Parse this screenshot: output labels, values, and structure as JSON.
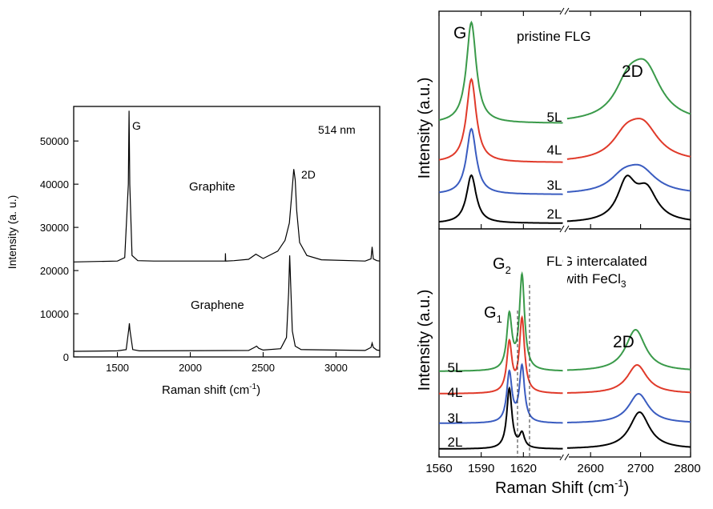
{
  "chart_data": [
    {
      "type": "line",
      "xlabel": "Raman shift (cm",
      "xlabel_sup": "-1",
      "xlabel_close": ")",
      "ylabel": "Intensity (a. u.)",
      "xlim": [
        1200,
        3300
      ],
      "ylim": [
        0,
        58000
      ],
      "xticks": [
        1500,
        2000,
        2500,
        3000
      ],
      "yticks": [
        0,
        10000,
        20000,
        30000,
        40000,
        50000
      ],
      "annotations": {
        "laser": "514 nm",
        "peak_g": "G",
        "peak_2d": "2D"
      },
      "grid": false,
      "series": [
        {
          "name": "Graphite",
          "baseline": 22000,
          "x": [
            1200,
            1500,
            1550,
            1575,
            1580,
            1585,
            1600,
            1640,
            1750,
            2200,
            2240,
            2241,
            2243,
            2300,
            2400,
            2450,
            2500,
            2600,
            2650,
            2680,
            2695,
            2710,
            2720,
            2730,
            2750,
            2800,
            2900,
            3200,
            3240,
            3248,
            3256,
            3280,
            3300
          ],
          "y": [
            22000,
            22200,
            23000,
            40000,
            57000,
            40000,
            23500,
            22300,
            22200,
            22200,
            22200,
            24000,
            22200,
            22300,
            22600,
            23800,
            22800,
            24500,
            27000,
            31000,
            37000,
            43500,
            41000,
            34000,
            26500,
            23500,
            22500,
            22200,
            22700,
            25500,
            22700,
            22300,
            22200
          ]
        },
        {
          "name": "Graphene",
          "baseline": 1200,
          "x": [
            1200,
            1500,
            1560,
            1578,
            1582,
            1586,
            1605,
            1650,
            2400,
            2440,
            2455,
            2470,
            2500,
            2620,
            2660,
            2675,
            2682,
            2690,
            2700,
            2720,
            2760,
            3200,
            3240,
            3248,
            3256,
            3280,
            3300
          ],
          "y": [
            1300,
            1400,
            1700,
            6500,
            7800,
            6200,
            1700,
            1400,
            1500,
            2200,
            2500,
            2000,
            1600,
            1900,
            4500,
            15000,
            23500,
            16000,
            6000,
            2500,
            1700,
            1500,
            2200,
            3200,
            2200,
            1600,
            1500
          ]
        }
      ]
    },
    {
      "type": "line",
      "title": "pristine FLG",
      "ylabel": "Intensity (a.u.)",
      "xticks": [
        1560,
        1590,
        1620,
        2600,
        2700,
        2800
      ],
      "peak_labels": {
        "g": "G",
        "d2": "2D"
      },
      "grid": false,
      "series": [
        {
          "name": "5L",
          "color": "#3a9a4a",
          "g_center": 1583,
          "d2_center": 2705
        },
        {
          "name": "4L",
          "color": "#e03a2a",
          "g_center": 1583,
          "d2_center": 2700
        },
        {
          "name": "3L",
          "color": "#3a5cc0",
          "g_center": 1583,
          "d2_center": 2695
        },
        {
          "name": "2L",
          "color": "#000000",
          "g_center": 1583,
          "d2_center": 2690
        }
      ]
    },
    {
      "type": "line",
      "title": "FLG intercalated",
      "title_line2": "with FeCl",
      "title_sub": "3",
      "xlabel": "Raman Shift (cm",
      "xlabel_sup": "-1",
      "xlabel_close": ")",
      "ylabel": "Intensity (a.u.)",
      "xticks": [
        1560,
        1590,
        1620,
        2600,
        2700,
        2800
      ],
      "peak_labels": {
        "g1": "G",
        "g1_sub": "1",
        "g2": "G",
        "g2_sub": "2",
        "d2": "2D"
      },
      "grid": false,
      "series": [
        {
          "name": "5L",
          "color": "#3a9a4a",
          "g1": 1610,
          "g2": 1619,
          "d2_center": 2690
        },
        {
          "name": "4L",
          "color": "#e03a2a",
          "g1": 1610,
          "g2": 1619,
          "d2_center": 2693
        },
        {
          "name": "3L",
          "color": "#3a5cc0",
          "g1": 1610,
          "g2": 1619,
          "d2_center": 2696
        },
        {
          "name": "2L",
          "color": "#000000",
          "g1": 1610,
          "g2": 1619,
          "d2_center": 2698
        }
      ]
    }
  ],
  "chart_text": {
    "left": {
      "graphite": "Graphite",
      "graphene": "Graphene"
    }
  }
}
